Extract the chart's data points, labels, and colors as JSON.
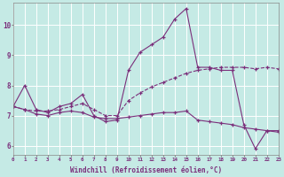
{
  "line1_x": [
    0,
    1,
    2,
    3,
    4,
    5,
    6,
    7,
    8,
    9,
    10,
    11,
    12,
    13,
    14,
    15,
    16,
    17,
    18,
    19,
    20,
    21,
    22,
    23
  ],
  "line1_y": [
    7.3,
    8.0,
    7.2,
    7.1,
    7.3,
    7.4,
    7.7,
    7.0,
    6.8,
    6.85,
    8.5,
    9.1,
    9.35,
    9.6,
    10.2,
    10.55,
    8.6,
    8.6,
    8.5,
    8.5,
    6.7,
    5.9,
    6.5,
    6.5
  ],
  "line2_x": [
    0,
    1,
    2,
    3,
    4,
    5,
    6,
    7,
    8,
    9,
    10,
    11,
    12,
    13,
    14,
    15,
    16,
    17,
    18,
    19,
    20,
    21,
    22,
    23
  ],
  "line2_y": [
    7.3,
    7.2,
    7.05,
    7.0,
    7.1,
    7.15,
    7.1,
    6.95,
    6.9,
    6.9,
    6.95,
    7.0,
    7.05,
    7.1,
    7.1,
    7.15,
    6.85,
    6.8,
    6.75,
    6.7,
    6.6,
    6.55,
    6.5,
    6.45
  ],
  "line3_x": [
    0,
    1,
    2,
    3,
    4,
    5,
    6,
    7,
    8,
    9,
    10,
    11,
    12,
    13,
    14,
    15,
    16,
    17,
    18,
    19,
    20,
    21,
    22,
    23
  ],
  "line3_y": [
    7.3,
    7.2,
    7.15,
    7.15,
    7.2,
    7.3,
    7.4,
    7.2,
    7.0,
    7.0,
    7.5,
    7.75,
    7.95,
    8.1,
    8.25,
    8.4,
    8.5,
    8.55,
    8.6,
    8.6,
    8.6,
    8.55,
    8.6,
    8.55
  ],
  "line_color": "#7b2f7b",
  "bg_color": "#c5eae5",
  "grid_color": "#aad8d0",
  "xlabel": "Windchill (Refroidissement éolien,°C)",
  "xlim": [
    0,
    23
  ],
  "ylim": [
    5.7,
    10.75
  ],
  "yticks": [
    6,
    7,
    8,
    9,
    10
  ],
  "xticks": [
    0,
    1,
    2,
    3,
    4,
    5,
    6,
    7,
    8,
    9,
    10,
    11,
    12,
    13,
    14,
    15,
    16,
    17,
    18,
    19,
    20,
    21,
    22,
    23
  ]
}
